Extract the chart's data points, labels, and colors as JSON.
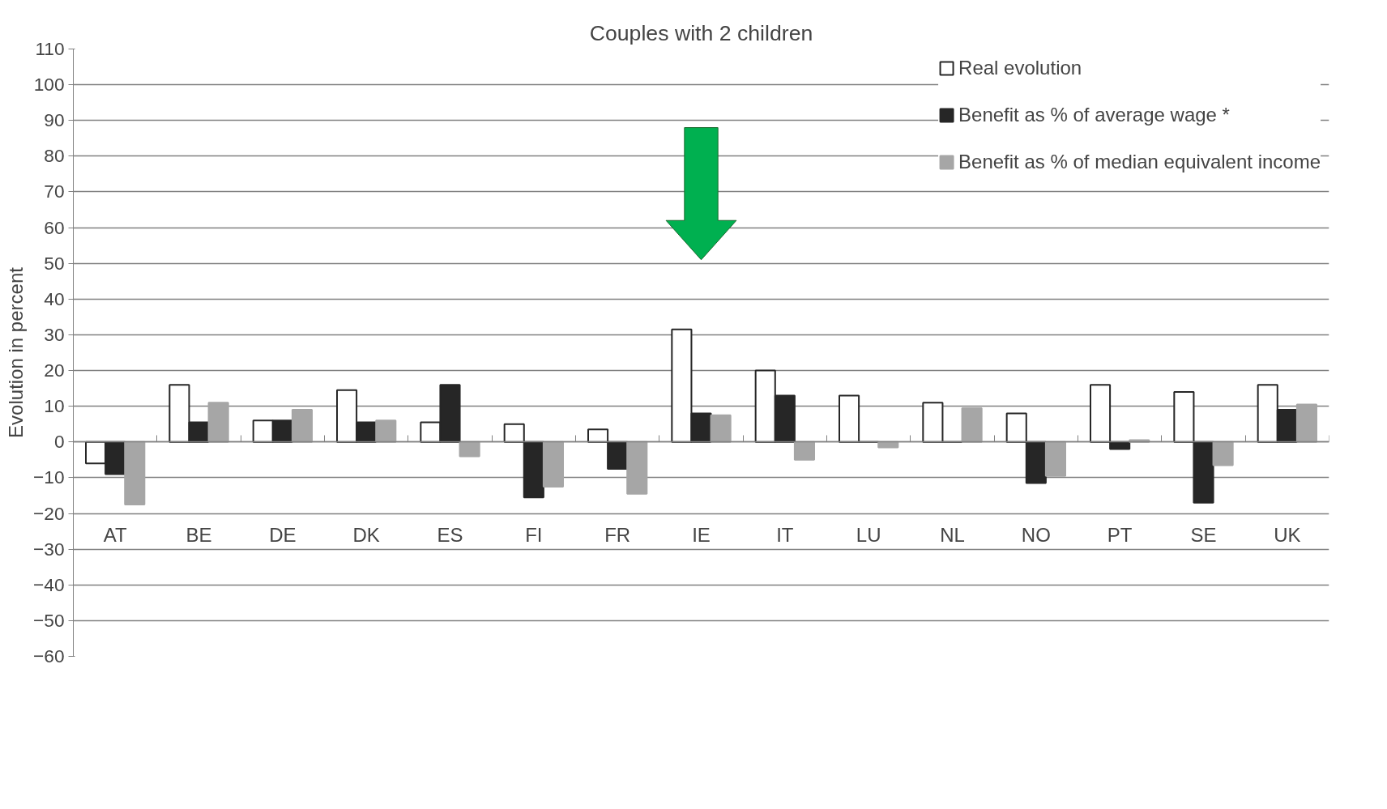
{
  "chart_data": {
    "type": "bar",
    "title": "Couples with 2 children",
    "ylabel": "Evolution in percent",
    "categories": [
      "AT",
      "BE",
      "DE",
      "DK",
      "ES",
      "FI",
      "FR",
      "IE",
      "IT",
      "LU",
      "NL",
      "NO",
      "PT",
      "SE",
      "UK"
    ],
    "series": [
      {
        "name": "Real evolution",
        "color": "#ffffff",
        "values": [
          -6,
          16,
          6,
          14.5,
          5.5,
          5,
          3.5,
          31.5,
          20,
          13,
          11,
          8,
          16,
          14,
          16
        ]
      },
      {
        "name": "Benefit as % of average wage *",
        "color": "#262626",
        "values": [
          -9,
          5.5,
          6,
          5.5,
          16,
          -15.5,
          -7.5,
          8,
          13,
          0,
          0,
          -11.5,
          -2,
          -17,
          9
        ]
      },
      {
        "name": "Benefit as % of median equivalent income",
        "color": "#a6a6a6",
        "values": [
          -17.5,
          11,
          9,
          6,
          -4,
          -12.5,
          -14.5,
          7.5,
          -5,
          -1.5,
          9.5,
          -9.5,
          0.5,
          -6.5,
          10.5
        ]
      }
    ],
    "ylim": [
      -60,
      110
    ],
    "yticks": [
      -60,
      -50,
      -40,
      -30,
      -20,
      -10,
      0,
      10,
      20,
      30,
      40,
      50,
      60,
      70,
      80,
      90,
      100,
      110
    ],
    "grid": "y",
    "legend": "top right"
  }
}
